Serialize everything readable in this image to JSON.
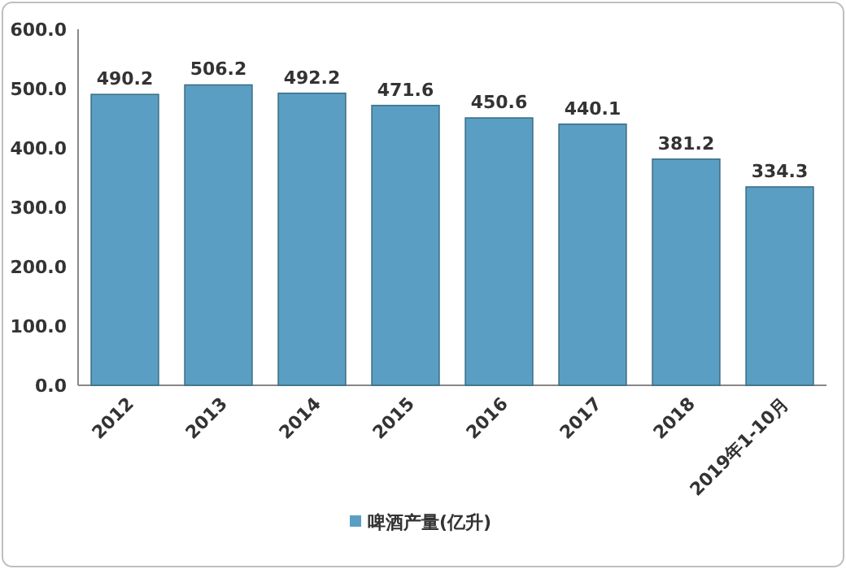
{
  "chart_data": {
    "type": "bar",
    "categories": [
      "2012",
      "2013",
      "2014",
      "2015",
      "2016",
      "2017",
      "2018",
      "2019年1-10月"
    ],
    "series": [
      {
        "name": "啤酒产量(亿升)",
        "color": "#5a9fc3",
        "values": [
          490.2,
          506.2,
          492.2,
          471.6,
          450.6,
          440.1,
          381.2,
          334.3
        ]
      }
    ],
    "ylim": [
      0,
      600
    ],
    "yticks": [
      {
        "value": 0,
        "label": "0.0"
      },
      {
        "value": 100,
        "label": "100.0"
      },
      {
        "value": 200,
        "label": "200.0"
      },
      {
        "value": 300,
        "label": "300.0"
      },
      {
        "value": 400,
        "label": "400.0"
      },
      {
        "value": 500,
        "label": "500.0"
      },
      {
        "value": 600,
        "label": "600.0"
      }
    ],
    "data_labels": true,
    "legend": "bottom",
    "grid": false
  }
}
